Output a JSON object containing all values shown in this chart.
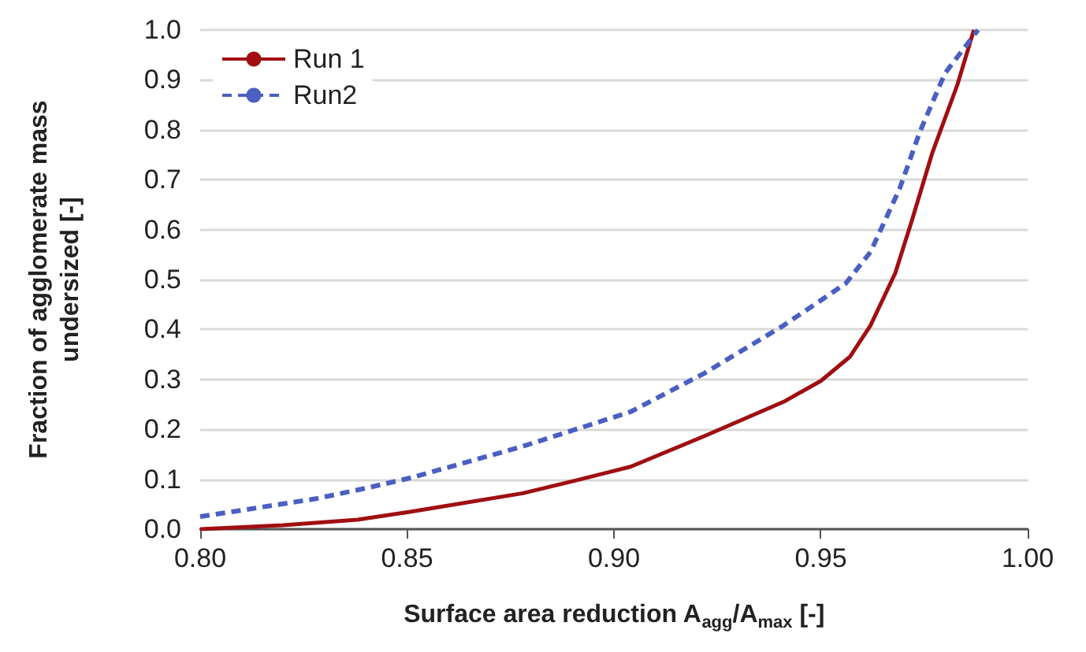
{
  "chart_data": {
    "type": "line",
    "xlabel": "Surface area reduction A$_{agg}$/A$_{max}$ [-]",
    "ylabel": "Fraction of agglomerate mass\nundersized [-]",
    "xlim": [
      0.8,
      1.0
    ],
    "xticks": [
      {
        "value": 0.8,
        "label": "0.80"
      },
      {
        "value": 0.85,
        "label": "0.85"
      },
      {
        "value": 0.9,
        "label": "0.90"
      },
      {
        "value": 0.95,
        "label": "0.95"
      },
      {
        "value": 1.0,
        "label": "1.00"
      }
    ],
    "ylim": [
      0,
      1
    ],
    "yticks": [
      {
        "value": 0,
        "label": "0.0"
      },
      0.1,
      0.2,
      0.3,
      0.4,
      0.5,
      0.6,
      0.7,
      0.8,
      0.9,
      {
        "value": 1,
        "label": "1.0"
      }
    ],
    "grid": "y",
    "legend": "top left",
    "marker": "none",
    "series": [
      {
        "name": "Run 1",
        "color": "#a00f12",
        "line_style": "solid",
        "x": [
          0.8,
          0.82,
          0.838,
          0.851,
          0.878,
          0.891,
          0.904,
          0.922,
          0.941,
          0.95,
          0.957,
          0.962,
          0.968,
          0.972,
          0.977,
          0.983,
          0.987
        ],
        "values": [
          0,
          0.008,
          0.019,
          0.035,
          0.072,
          0.098,
          0.125,
          0.187,
          0.255,
          0.297,
          0.345,
          0.408,
          0.513,
          0.618,
          0.755,
          0.89,
          1.0
        ]
      },
      {
        "name": "Run2",
        "color": "#4a5fc1",
        "line_style": "dashed",
        "x": [
          0.8,
          0.828,
          0.84,
          0.851,
          0.878,
          0.904,
          0.922,
          0.941,
          0.956,
          0.962,
          0.969,
          0.974,
          0.98,
          0.988
        ],
        "values": [
          0.025,
          0.061,
          0.082,
          0.103,
          0.166,
          0.235,
          0.313,
          0.408,
          0.492,
          0.555,
          0.681,
          0.797,
          0.913,
          1.0
        ]
      }
    ]
  }
}
